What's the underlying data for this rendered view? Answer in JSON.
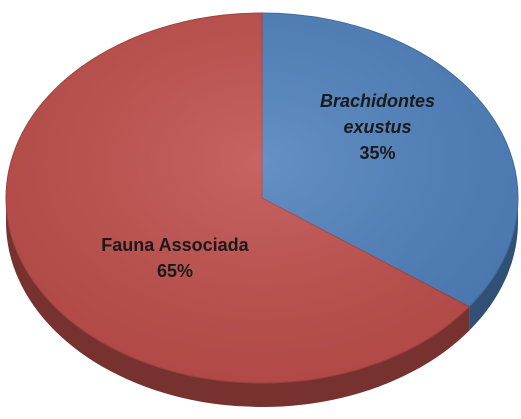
{
  "chart_data": {
    "type": "pie",
    "categories": [
      "Brachidontes exustus",
      "Fauna Associada"
    ],
    "values": [
      35,
      65
    ],
    "value_labels": [
      "35%",
      "65%"
    ],
    "colors": [
      "#4f81bd",
      "#c0504d"
    ]
  }
}
